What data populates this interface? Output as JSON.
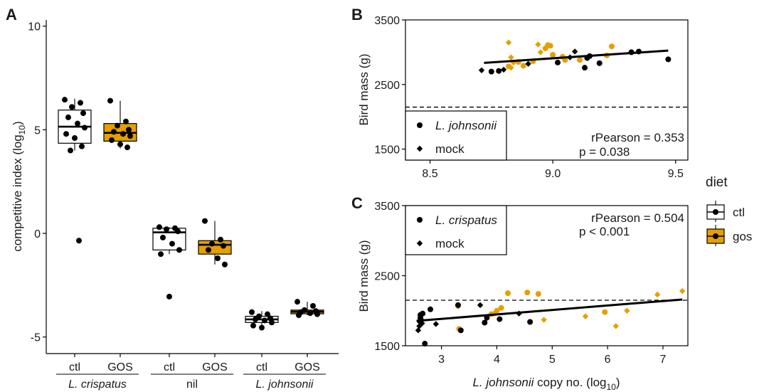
{
  "colors": {
    "ctl": "#ffffff",
    "gos": "#e69f00",
    "ink": "#000000"
  },
  "chart_data": [
    {
      "panel": "A",
      "type": "box",
      "ylabel_pre": "competitive index (log",
      "ylabel_sub": "10",
      "ylabel_post": ")",
      "ylim": [
        -5.8,
        10.3
      ],
      "yticks": [
        -5,
        0,
        5,
        10
      ],
      "ytick_labels": [
        "-5",
        "0",
        "5",
        "10"
      ],
      "groups": [
        {
          "label": "L. crispatus",
          "italic": true,
          "boxes": [
            {
              "category": "ctl",
              "diet": "ctl",
              "q1": 4.35,
              "median": 5.15,
              "q3": 5.95,
              "whisker_low": 4.0,
              "whisker_high": 6.5,
              "points": [
                6.45,
                6.3,
                6.1,
                5.8,
                5.6,
                5.3,
                5.1,
                4.8,
                4.6,
                4.2,
                4.0,
                -0.35
              ]
            },
            {
              "category": "GOS",
              "diet": "gos",
              "q1": 4.45,
              "median": 4.85,
              "q3": 5.3,
              "whisker_low": 4.1,
              "whisker_high": 6.4,
              "points": [
                6.4,
                5.4,
                5.2,
                5.0,
                4.9,
                4.8,
                4.7,
                4.5,
                4.3,
                4.15
              ]
            }
          ]
        },
        {
          "label": "nil",
          "italic": false,
          "boxes": [
            {
              "category": "ctl",
              "diet": "ctl",
              "q1": -0.8,
              "median": 0.05,
              "q3": 0.25,
              "whisker_low": -1.0,
              "whisker_high": 0.3,
              "points": [
                0.3,
                0.25,
                0.2,
                0.1,
                -0.2,
                -0.5,
                -0.8,
                -1.0,
                -3.05
              ]
            },
            {
              "category": "GOS",
              "diet": "gos",
              "q1": -1.0,
              "median": -0.55,
              "q3": -0.35,
              "whisker_low": -1.5,
              "whisker_high": 0.6,
              "points": [
                0.6,
                -0.3,
                -0.5,
                -0.6,
                -0.8,
                -1.2,
                -1.5
              ]
            }
          ]
        },
        {
          "label": "L. johnsonii",
          "italic": true,
          "boxes": [
            {
              "category": "ctl",
              "diet": "ctl",
              "q1": -4.3,
              "median": -4.15,
              "q3": -4.0,
              "whisker_low": -4.5,
              "whisker_high": -3.75,
              "points": [
                -3.8,
                -3.9,
                -4.0,
                -4.1,
                -4.15,
                -4.2,
                -4.3,
                -4.45,
                -4.55
              ]
            },
            {
              "category": "GOS",
              "diet": "gos",
              "q1": -3.88,
              "median": -3.78,
              "q3": -3.7,
              "whisker_low": -3.95,
              "whisker_high": -3.3,
              "points": [
                -3.3,
                -3.5,
                -3.7,
                -3.75,
                -3.8,
                -3.85,
                -3.9,
                -3.95
              ]
            }
          ]
        }
      ]
    },
    {
      "panel": "B",
      "type": "scatter",
      "ylabel": "Bird mass (g)",
      "xlim": [
        8.4,
        9.55
      ],
      "ylim": [
        1330,
        3500
      ],
      "xticks": [
        8.5,
        9.0,
        9.5
      ],
      "xtick_labels": [
        "8.5",
        "9.0",
        "9.5"
      ],
      "yticks": [
        1500,
        2500,
        3500
      ],
      "ytick_labels": [
        "1500",
        "2500",
        "3500"
      ],
      "hline": 2150,
      "fit": {
        "x": [
          8.72,
          9.47
        ],
        "y": [
          2835,
          3025
        ]
      },
      "legend": [
        {
          "label": "L. johnsonii",
          "italic": true,
          "shape": "circle"
        },
        {
          "label": "mock",
          "italic": false,
          "shape": "diamond"
        }
      ],
      "stat_r": "rPearson = 0.353",
      "stat_p": "p = 0.038",
      "points": [
        {
          "x": 8.71,
          "y": 2720,
          "diet": "ctl",
          "shape": "diamond"
        },
        {
          "x": 8.75,
          "y": 2700,
          "diet": "ctl",
          "shape": "circle"
        },
        {
          "x": 8.78,
          "y": 2710,
          "diet": "ctl",
          "shape": "circle"
        },
        {
          "x": 8.8,
          "y": 2730,
          "diet": "ctl",
          "shape": "diamond"
        },
        {
          "x": 8.82,
          "y": 2780,
          "diet": "gos",
          "shape": "circle"
        },
        {
          "x": 8.83,
          "y": 2760,
          "diet": "gos",
          "shape": "diamond"
        },
        {
          "x": 8.84,
          "y": 2840,
          "diet": "gos",
          "shape": "diamond"
        },
        {
          "x": 8.83,
          "y": 2920,
          "diet": "gos",
          "shape": "diamond"
        },
        {
          "x": 8.82,
          "y": 3150,
          "diet": "gos",
          "shape": "diamond"
        },
        {
          "x": 8.86,
          "y": 2850,
          "diet": "gos",
          "shape": "circle"
        },
        {
          "x": 8.88,
          "y": 2790,
          "diet": "gos",
          "shape": "circle"
        },
        {
          "x": 8.9,
          "y": 2820,
          "diet": "ctl",
          "shape": "diamond"
        },
        {
          "x": 8.92,
          "y": 2860,
          "diet": "gos",
          "shape": "circle"
        },
        {
          "x": 8.94,
          "y": 3120,
          "diet": "gos",
          "shape": "diamond"
        },
        {
          "x": 8.95,
          "y": 3000,
          "diet": "gos",
          "shape": "diamond"
        },
        {
          "x": 8.97,
          "y": 3060,
          "diet": "gos",
          "shape": "circle"
        },
        {
          "x": 8.98,
          "y": 3110,
          "diet": "gos",
          "shape": "circle"
        },
        {
          "x": 8.99,
          "y": 3100,
          "diet": "gos",
          "shape": "circle"
        },
        {
          "x": 9.0,
          "y": 2960,
          "diet": "gos",
          "shape": "circle"
        },
        {
          "x": 9.02,
          "y": 2840,
          "diet": "ctl",
          "shape": "circle"
        },
        {
          "x": 9.04,
          "y": 2930,
          "diet": "gos",
          "shape": "circle"
        },
        {
          "x": 9.05,
          "y": 2880,
          "diet": "gos",
          "shape": "circle"
        },
        {
          "x": 9.07,
          "y": 2920,
          "diet": "ctl",
          "shape": "diamond"
        },
        {
          "x": 9.09,
          "y": 3010,
          "diet": "ctl",
          "shape": "diamond"
        },
        {
          "x": 9.11,
          "y": 2880,
          "diet": "gos",
          "shape": "circle"
        },
        {
          "x": 9.13,
          "y": 2760,
          "diet": "ctl",
          "shape": "circle"
        },
        {
          "x": 9.14,
          "y": 2910,
          "diet": "ctl",
          "shape": "circle"
        },
        {
          "x": 9.15,
          "y": 2940,
          "diet": "ctl",
          "shape": "circle"
        },
        {
          "x": 9.19,
          "y": 2830,
          "diet": "ctl",
          "shape": "circle"
        },
        {
          "x": 9.22,
          "y": 2950,
          "diet": "gos",
          "shape": "circle"
        },
        {
          "x": 9.24,
          "y": 3090,
          "diet": "gos",
          "shape": "circle"
        },
        {
          "x": 9.32,
          "y": 3000,
          "diet": "ctl",
          "shape": "circle"
        },
        {
          "x": 9.35,
          "y": 3010,
          "diet": "ctl",
          "shape": "circle"
        },
        {
          "x": 9.47,
          "y": 2890,
          "diet": "ctl",
          "shape": "circle"
        }
      ]
    },
    {
      "panel": "C",
      "type": "scatter",
      "ylabel": "Bird mass (g)",
      "xlabel_pre": "L. johnsonii",
      "xlabel_mid": " copy no. (log",
      "xlabel_sub": "10",
      "xlabel_post": ")",
      "xlim": [
        2.35,
        7.45
      ],
      "ylim": [
        1500,
        3500
      ],
      "xticks": [
        3,
        4,
        5,
        6,
        7
      ],
      "xtick_labels": [
        "3",
        "4",
        "5",
        "6",
        "7"
      ],
      "yticks": [
        1500,
        2500,
        3500
      ],
      "ytick_labels": [
        "1500",
        "2500",
        "3500"
      ],
      "hline": 2150,
      "fit": {
        "x": [
          2.55,
          7.35
        ],
        "y": [
          1855,
          2160
        ]
      },
      "legend": [
        {
          "label": "L. crispatus",
          "italic": true,
          "shape": "circle"
        },
        {
          "label": "mock",
          "italic": false,
          "shape": "diamond"
        }
      ],
      "stat_r": "rPearson = 0.504",
      "stat_p": "p < 0.001",
      "points": [
        {
          "x": 2.58,
          "y": 1720,
          "diet": "ctl",
          "shape": "diamond"
        },
        {
          "x": 2.6,
          "y": 1780,
          "diet": "ctl",
          "shape": "diamond"
        },
        {
          "x": 2.61,
          "y": 1850,
          "diet": "ctl",
          "shape": "circle"
        },
        {
          "x": 2.62,
          "y": 1900,
          "diet": "ctl",
          "shape": "circle"
        },
        {
          "x": 2.62,
          "y": 1940,
          "diet": "ctl",
          "shape": "circle"
        },
        {
          "x": 2.64,
          "y": 1870,
          "diet": "ctl",
          "shape": "diamond"
        },
        {
          "x": 2.65,
          "y": 1820,
          "diet": "ctl",
          "shape": "diamond"
        },
        {
          "x": 2.66,
          "y": 1960,
          "diet": "ctl",
          "shape": "circle"
        },
        {
          "x": 2.7,
          "y": 1530,
          "diet": "ctl",
          "shape": "circle"
        },
        {
          "x": 2.8,
          "y": 2020,
          "diet": "ctl",
          "shape": "circle"
        },
        {
          "x": 2.9,
          "y": 1810,
          "diet": "ctl",
          "shape": "diamond"
        },
        {
          "x": 3.3,
          "y": 2060,
          "diet": "gos",
          "shape": "diamond"
        },
        {
          "x": 3.32,
          "y": 1740,
          "diet": "gos",
          "shape": "circle"
        },
        {
          "x": 3.35,
          "y": 1720,
          "diet": "ctl",
          "shape": "circle"
        },
        {
          "x": 3.3,
          "y": 2080,
          "diet": "ctl",
          "shape": "circle"
        },
        {
          "x": 3.7,
          "y": 2080,
          "diet": "ctl",
          "shape": "diamond"
        },
        {
          "x": 3.78,
          "y": 1830,
          "diet": "ctl",
          "shape": "circle"
        },
        {
          "x": 3.82,
          "y": 1900,
          "diet": "ctl",
          "shape": "circle"
        },
        {
          "x": 3.9,
          "y": 1950,
          "diet": "gos",
          "shape": "circle"
        },
        {
          "x": 3.95,
          "y": 1960,
          "diet": "gos",
          "shape": "diamond"
        },
        {
          "x": 4.0,
          "y": 2000,
          "diet": "gos",
          "shape": "circle"
        },
        {
          "x": 4.05,
          "y": 1880,
          "diet": "ctl",
          "shape": "circle"
        },
        {
          "x": 4.08,
          "y": 2040,
          "diet": "gos",
          "shape": "circle"
        },
        {
          "x": 4.2,
          "y": 2250,
          "diet": "gos",
          "shape": "circle"
        },
        {
          "x": 4.4,
          "y": 1960,
          "diet": "ctl",
          "shape": "diamond"
        },
        {
          "x": 4.55,
          "y": 2260,
          "diet": "gos",
          "shape": "circle"
        },
        {
          "x": 4.6,
          "y": 1840,
          "diet": "ctl",
          "shape": "circle"
        },
        {
          "x": 4.75,
          "y": 2240,
          "diet": "gos",
          "shape": "circle"
        },
        {
          "x": 4.85,
          "y": 1870,
          "diet": "gos",
          "shape": "diamond"
        },
        {
          "x": 5.6,
          "y": 1920,
          "diet": "gos",
          "shape": "diamond"
        },
        {
          "x": 5.95,
          "y": 1980,
          "diet": "gos",
          "shape": "circle"
        },
        {
          "x": 6.15,
          "y": 1780,
          "diet": "gos",
          "shape": "diamond"
        },
        {
          "x": 6.35,
          "y": 2000,
          "diet": "gos",
          "shape": "diamond"
        },
        {
          "x": 6.9,
          "y": 2230,
          "diet": "gos",
          "shape": "diamond"
        },
        {
          "x": 7.35,
          "y": 2280,
          "diet": "gos",
          "shape": "diamond"
        }
      ]
    }
  ],
  "shared_legend": {
    "title": "diet",
    "items": [
      {
        "label": "ctl",
        "diet": "ctl"
      },
      {
        "label": "gos",
        "diet": "gos"
      }
    ]
  }
}
